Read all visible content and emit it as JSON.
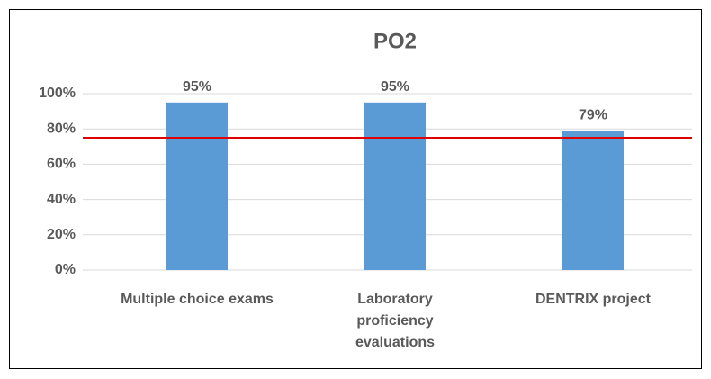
{
  "chart_data": {
    "type": "bar",
    "title": "PO2",
    "categories": [
      "Multiple choice exams",
      "Laboratory proficiency evaluations",
      "DENTRIX project"
    ],
    "values": [
      95,
      95,
      79
    ],
    "value_labels": [
      "95%",
      "95%",
      "79%"
    ],
    "color": "#5b9bd5",
    "ylim": [
      0,
      100
    ],
    "yticks": [
      {
        "value": 0,
        "label": "0%"
      },
      {
        "value": 20,
        "label": "20%"
      },
      {
        "value": 40,
        "label": "40%"
      },
      {
        "value": 60,
        "label": "60%"
      },
      {
        "value": 80,
        "label": "80%"
      },
      {
        "value": 100,
        "label": "100%"
      }
    ],
    "grid": true,
    "reference_line": {
      "value": 75,
      "color": "#e00000"
    }
  }
}
